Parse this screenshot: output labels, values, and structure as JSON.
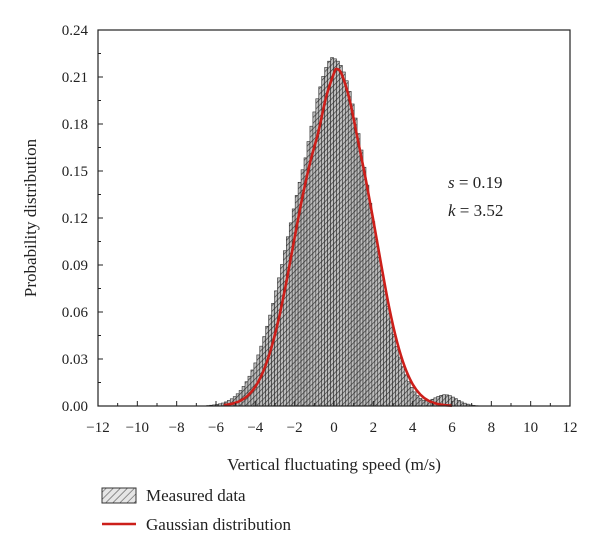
{
  "chart_data": {
    "type": "bar",
    "title": "",
    "xlabel": "Vertical fluctuating speed (m/s)",
    "ylabel": "Probability distribution",
    "xlim": [
      -12,
      12
    ],
    "ylim": [
      0,
      0.24
    ],
    "xticks": [
      -12,
      -10,
      -8,
      -6,
      -4,
      -2,
      0,
      2,
      4,
      6,
      8,
      10,
      12
    ],
    "yticks": [
      "0.00",
      "0.03",
      "0.06",
      "0.09",
      "0.12",
      "0.15",
      "0.18",
      "0.21",
      "0.24"
    ],
    "grid": false,
    "legend_position": "bottom",
    "annotations": [
      {
        "symbol": "s",
        "text": " = 0.19"
      },
      {
        "symbol": "k",
        "text": " = 3.52"
      }
    ],
    "series": [
      {
        "name": "Measured data",
        "kind": "histogram",
        "bin_width": 0.15,
        "x": [
          -6.4,
          -6.25,
          -6.1,
          -5.95,
          -5.8,
          -5.65,
          -5.5,
          -5.35,
          -5.2,
          -5.05,
          -4.9,
          -4.75,
          -4.6,
          -4.45,
          -4.3,
          -4.15,
          -4.0,
          -3.85,
          -3.7,
          -3.55,
          -3.4,
          -3.25,
          -3.1,
          -2.95,
          -2.8,
          -2.65,
          -2.5,
          -2.35,
          -2.2,
          -2.05,
          -1.9,
          -1.75,
          -1.6,
          -1.45,
          -1.3,
          -1.15,
          -1.0,
          -0.85,
          -0.7,
          -0.55,
          -0.4,
          -0.25,
          -0.1,
          0.05,
          0.2,
          0.35,
          0.5,
          0.65,
          0.8,
          0.95,
          1.1,
          1.25,
          1.4,
          1.55,
          1.7,
          1.85,
          2.0,
          2.15,
          2.3,
          2.45,
          2.6,
          2.75,
          2.9,
          3.05,
          3.2,
          3.35,
          3.5,
          3.65,
          3.8,
          3.95,
          4.1,
          4.25,
          4.4,
          4.55,
          4.7,
          4.85,
          5.0,
          5.15,
          5.3,
          5.45,
          5.6,
          5.75,
          5.9,
          6.05,
          6.2,
          6.35,
          6.5,
          6.65,
          6.8,
          6.95,
          7.1,
          7.25,
          7.4
        ],
        "values": [
          0.0003,
          0.0005,
          0.0007,
          0.001,
          0.0014,
          0.0019,
          0.0026,
          0.0035,
          0.0046,
          0.006,
          0.0078,
          0.0099,
          0.0125,
          0.0155,
          0.019,
          0.023,
          0.0275,
          0.0326,
          0.0382,
          0.0443,
          0.0509,
          0.058,
          0.0655,
          0.0735,
          0.0818,
          0.0903,
          0.0991,
          0.108,
          0.1169,
          0.1258,
          0.1344,
          0.1428,
          0.1508,
          0.1584,
          0.1688,
          0.1786,
          0.1877,
          0.1961,
          0.2037,
          0.2104,
          0.2161,
          0.2201,
          0.2224,
          0.2216,
          0.2201,
          0.2174,
          0.2132,
          0.2076,
          0.2008,
          0.1928,
          0.1838,
          0.1739,
          0.1634,
          0.1524,
          0.141,
          0.1294,
          0.1177,
          0.1061,
          0.0948,
          0.0838,
          0.0733,
          0.0634,
          0.0542,
          0.0457,
          0.038,
          0.0312,
          0.0251,
          0.0199,
          0.0155,
          0.0119,
          0.009,
          0.0066,
          0.0048,
          0.0037,
          0.0033,
          0.0036,
          0.0043,
          0.0052,
          0.0061,
          0.0068,
          0.0072,
          0.0071,
          0.0066,
          0.0057,
          0.0047,
          0.0036,
          0.0026,
          0.0018,
          0.0012,
          0.0007,
          0.0004,
          0.0002,
          0.0001
        ]
      },
      {
        "name": "Gaussian distribution",
        "kind": "line",
        "color": "#cc1f1a",
        "x": [
          -5.6,
          -5.2,
          -4.8,
          -4.4,
          -4.0,
          -3.6,
          -3.2,
          -2.8,
          -2.4,
          -2.0,
          -1.6,
          -1.2,
          -0.8,
          -0.4,
          0.0,
          0.15,
          0.4,
          0.8,
          1.2,
          1.6,
          2.0,
          2.4,
          2.8,
          3.2,
          3.6,
          4.0,
          4.4,
          4.8,
          5.2,
          5.6,
          6.0
        ],
        "values": [
          0.0005,
          0.0014,
          0.0031,
          0.0064,
          0.0123,
          0.022,
          0.0365,
          0.0562,
          0.0806,
          0.1076,
          0.1337,
          0.1562,
          0.1747,
          0.1972,
          0.2125,
          0.2151,
          0.2115,
          0.1951,
          0.1706,
          0.1457,
          0.1185,
          0.0902,
          0.0632,
          0.0412,
          0.0249,
          0.0139,
          0.0072,
          0.0034,
          0.0015,
          0.0006,
          0.0002
        ]
      }
    ]
  }
}
